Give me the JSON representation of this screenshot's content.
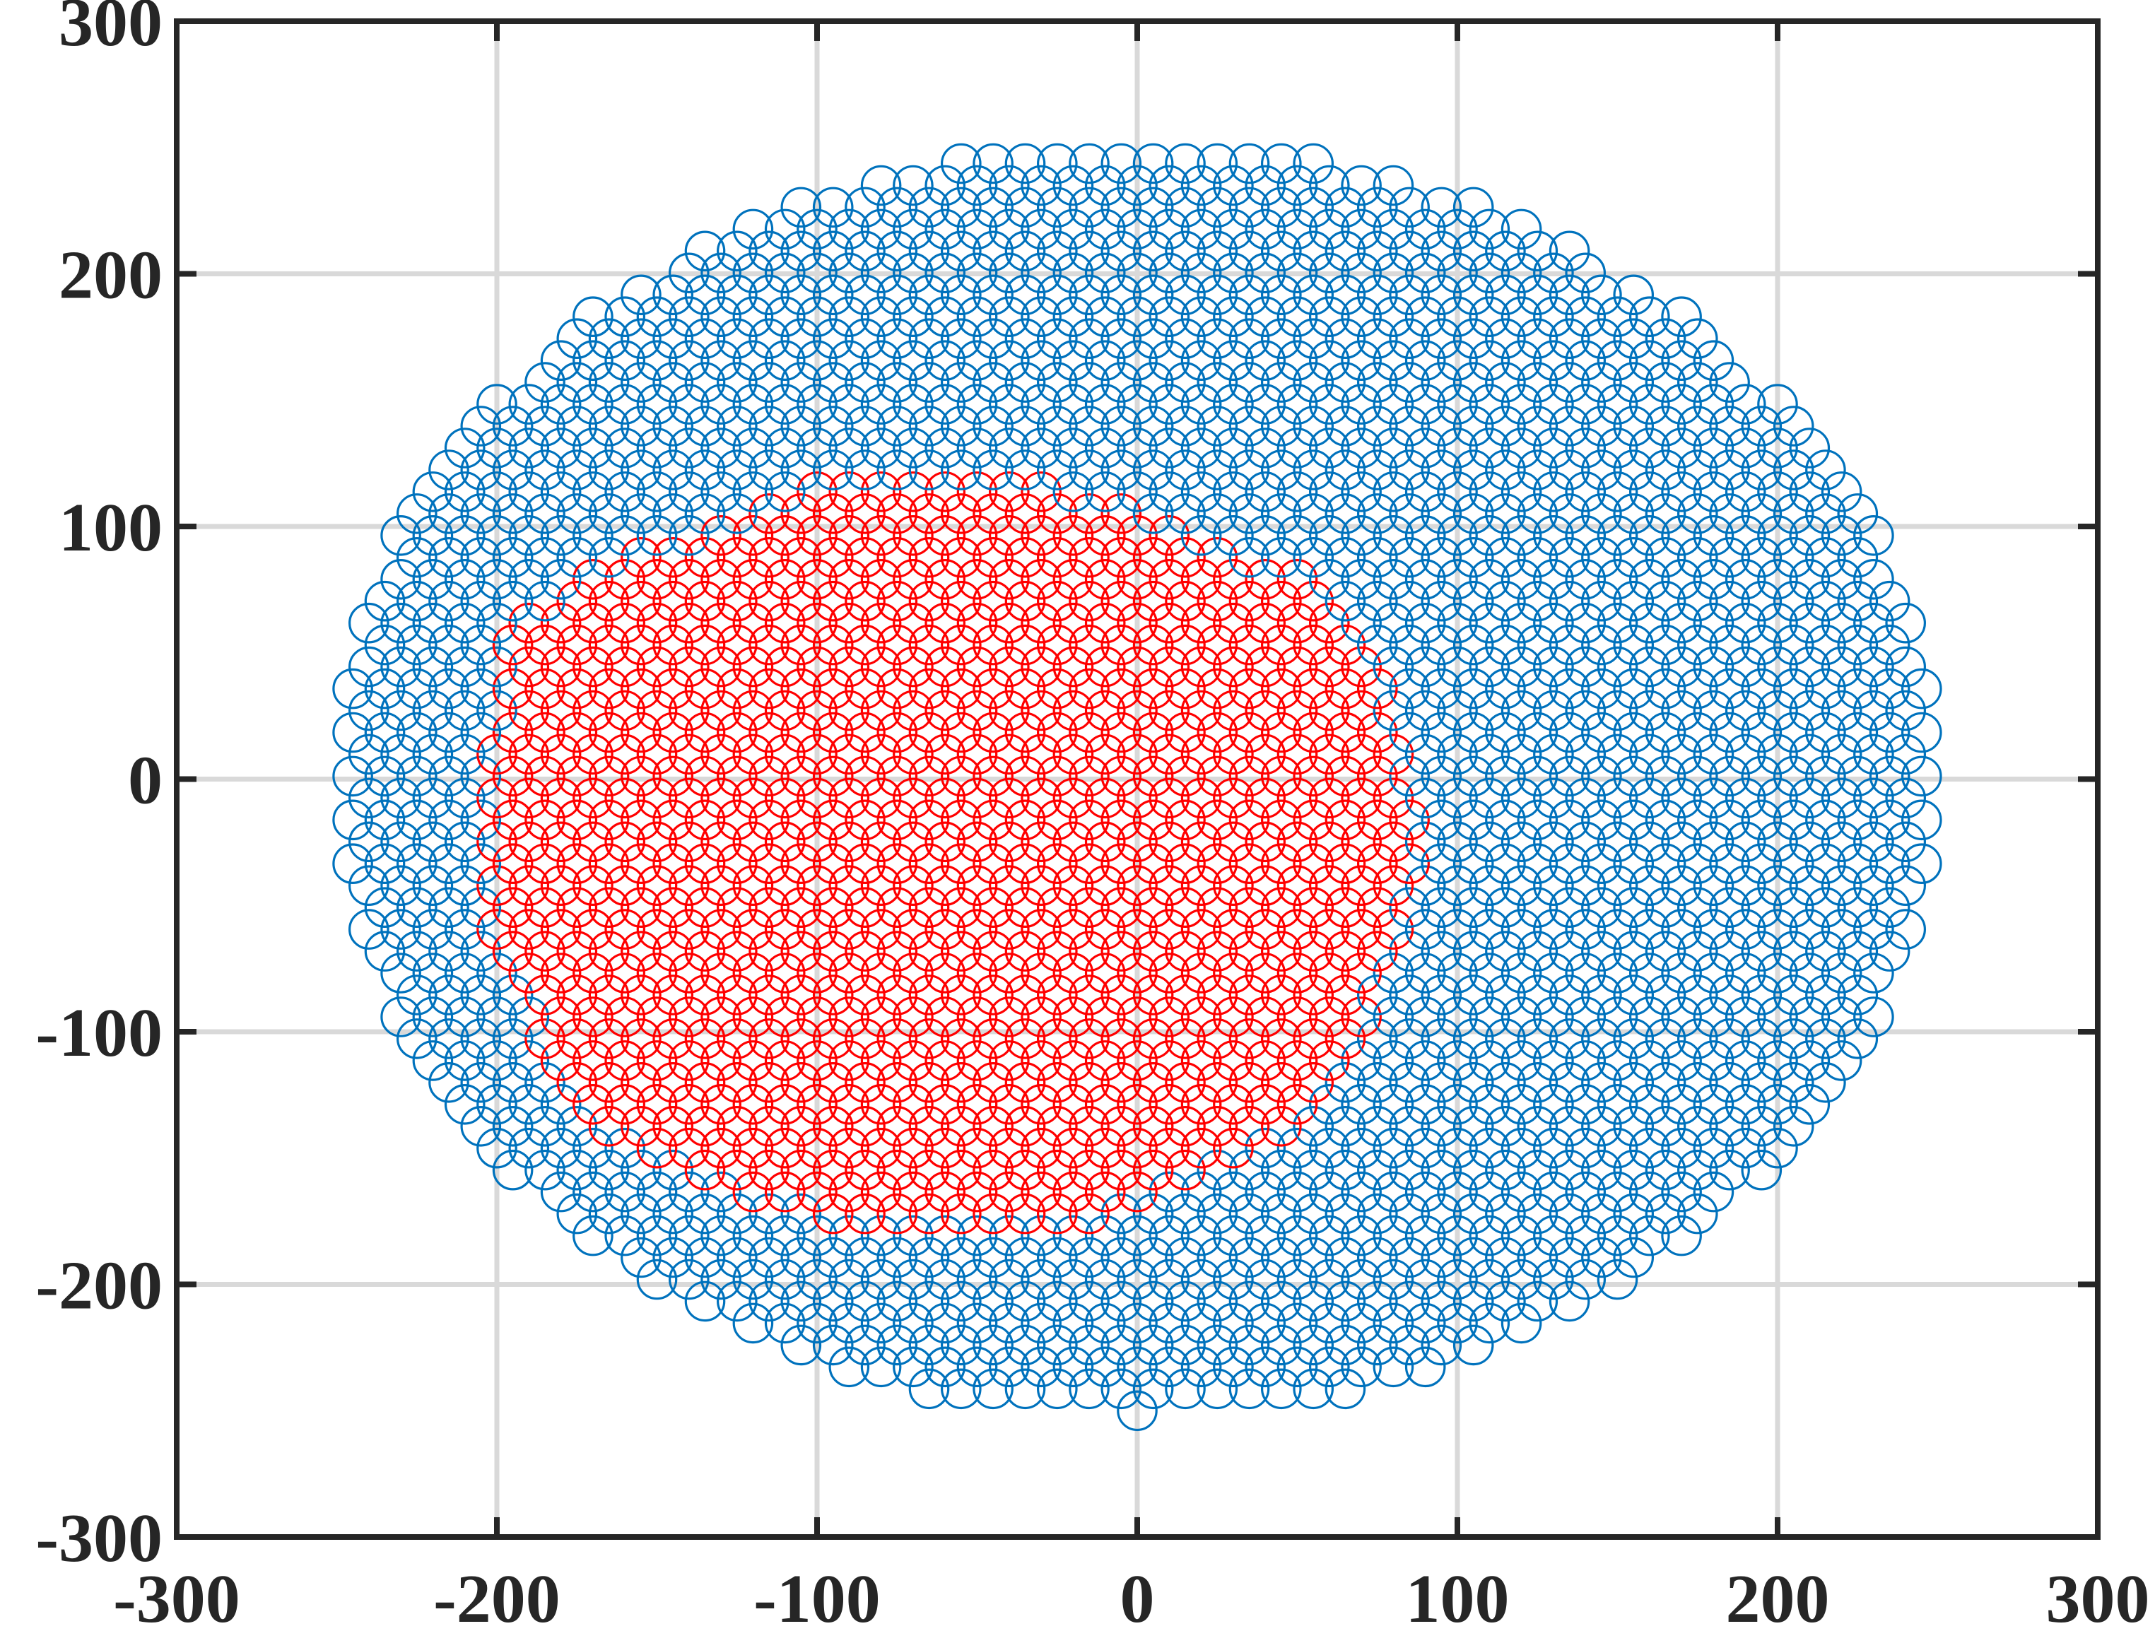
{
  "chart_data": {
    "type": "scatter",
    "title": "",
    "xlabel": "",
    "ylabel": "",
    "xlim": [
      -300,
      300
    ],
    "ylim": [
      -300,
      300
    ],
    "xticks": [
      "-300",
      "-200",
      "-100",
      "0",
      "100",
      "200",
      "300"
    ],
    "yticks": [
      "300",
      "200",
      "100",
      "0",
      "-100",
      "-200",
      "-300"
    ],
    "grid": true,
    "legend": "none",
    "marker": "circle-open",
    "series": [
      {
        "role": "outer-region",
        "color": "#0072BD",
        "region": {
          "shape": "ellipse",
          "center": [
            0,
            0
          ],
          "semi_axes": [
            250,
            250
          ]
        },
        "spacing": 10,
        "marker_diameter": 12
      },
      {
        "role": "inner-region",
        "color": "#FF0000",
        "region": {
          "shape": "polygon",
          "vertices": [
            [
              -205,
              -15
            ],
            [
              -195,
              60
            ],
            [
              -170,
              85
            ],
            [
              -130,
              100
            ],
            [
              -95,
              118
            ],
            [
              -40,
              118
            ],
            [
              15,
              98
            ],
            [
              50,
              80
            ],
            [
              75,
              40
            ],
            [
              88,
              -20
            ],
            [
              85,
              -50
            ],
            [
              70,
              -100
            ],
            [
              50,
              -135
            ],
            [
              20,
              -155
            ],
            [
              -20,
              -178
            ],
            [
              -70,
              -180
            ],
            [
              -120,
              -165
            ],
            [
              -165,
              -140
            ],
            [
              -185,
              -110
            ],
            [
              -200,
              -60
            ]
          ]
        },
        "spacing": 10,
        "marker_diameter": 12
      }
    ]
  }
}
